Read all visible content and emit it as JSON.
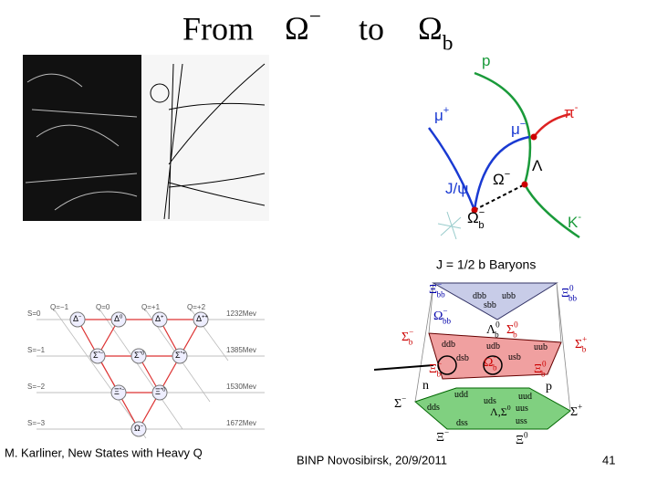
{
  "title": {
    "prefix": "From",
    "from": {
      "base": "Ω",
      "sup": "−"
    },
    "to": "to",
    "target": {
      "base": "Ω",
      "sub": "b"
    }
  },
  "decay_diagram": {
    "labels": [
      {
        "base": "p"
      },
      {
        "base": "π",
        "sup": "-"
      },
      {
        "base": "μ",
        "sup": "+"
      },
      {
        "base": "μ",
        "sup": "−"
      },
      {
        "base": "Λ"
      },
      {
        "base": "J/ψ"
      },
      {
        "base": "Ω",
        "sup": "−"
      },
      {
        "base": "Ω",
        "sup": "−",
        "sub": "b"
      },
      {
        "base": "K",
        "sup": "-"
      }
    ]
  },
  "decuplet": {
    "charges": [
      "Q=−1",
      "Q=0",
      "Q=+1",
      "Q=+2"
    ],
    "strangeness": [
      "S=0",
      "S=−1",
      "S=−2",
      "S=−3"
    ],
    "masses": [
      "1232Mev",
      "1385Mev",
      "1530Mev",
      "1672Mev"
    ],
    "particles": [
      {
        "base": "Δ",
        "sup": "−"
      },
      {
        "base": "Δ",
        "sup": "0"
      },
      {
        "base": "Δ",
        "sup": "+"
      },
      {
        "base": "Δ",
        "sup": "++"
      },
      {
        "base": "Σ",
        "sup": "*−"
      },
      {
        "base": "Σ",
        "sup": "*0"
      },
      {
        "base": "Σ",
        "sup": "*+"
      },
      {
        "base": "Ξ",
        "sup": "*−"
      },
      {
        "base": "Ξ",
        "sup": "*0"
      },
      {
        "base": "Ω",
        "sup": "−"
      }
    ]
  },
  "multiplet": {
    "title": "J = 1/2  b Baryons",
    "labels": [
      {
        "base": "Ξ",
        "sup": "−",
        "sub": "bb"
      },
      {
        "base": "Ξ",
        "sup": "0",
        "sub": "bb"
      },
      {
        "base": "Ω",
        "sup": "−",
        "sub": "bb"
      },
      {
        "base": "dbb"
      },
      {
        "base": "ubb"
      },
      {
        "base": "sbb"
      },
      {
        "base": "Λ",
        "sup": "0",
        "sub": "b"
      },
      {
        "base": "Σ",
        "sup": "0",
        "sub": "b"
      },
      {
        "base": "Σ",
        "sup": "−",
        "sub": "b"
      },
      {
        "base": "Σ",
        "sup": "+",
        "sub": "b"
      },
      {
        "base": "ddb"
      },
      {
        "base": "udb"
      },
      {
        "base": "uub"
      },
      {
        "base": "dsb"
      },
      {
        "base": "usb"
      },
      {
        "base": "Ξ",
        "sup": "−",
        "sub": "b"
      },
      {
        "base": "Ξ",
        "sup": "0",
        "sub": "b"
      },
      {
        "base": "Ω",
        "sup": "−",
        "sub": "b"
      },
      {
        "base": "n"
      },
      {
        "base": "p"
      },
      {
        "base": "Σ",
        "sup": "−"
      },
      {
        "base": "Σ",
        "sup": "+"
      },
      {
        "base": "Λ,Σ",
        "sup": "0"
      },
      {
        "base": "udd"
      },
      {
        "base": "uds"
      },
      {
        "base": "uud"
      },
      {
        "base": "dds"
      },
      {
        "base": "uus"
      },
      {
        "base": "dss"
      },
      {
        "base": "uss"
      },
      {
        "base": "Ξ",
        "sup": "−"
      },
      {
        "base": "Ξ",
        "sup": "0"
      }
    ]
  },
  "footer": {
    "left": "M. Karliner, New States with Heavy Q",
    "center": "BINP Novosibirsk, 20/9/2011",
    "page": "41"
  }
}
